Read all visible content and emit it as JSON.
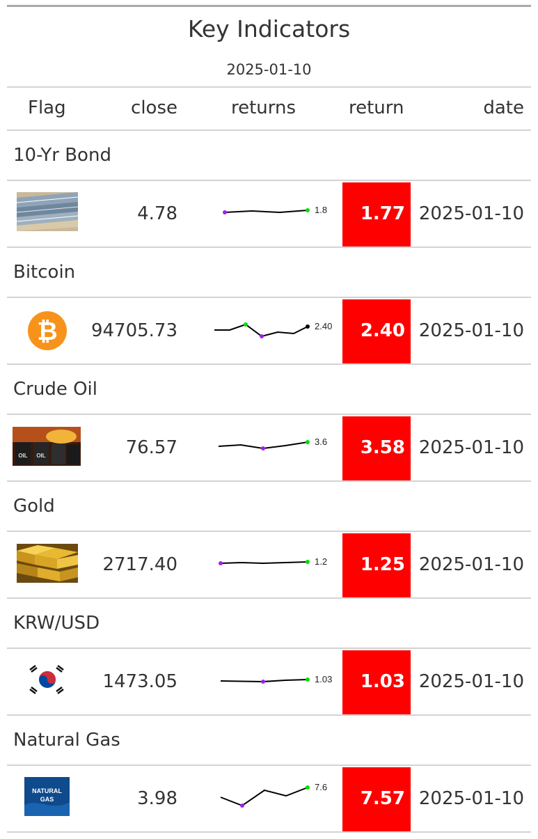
{
  "title": "Key Indicators",
  "subtitle": "2025-01-10",
  "columns": {
    "flag": "Flag",
    "close": "close",
    "returns": "returns",
    "return": "return",
    "date": "date"
  },
  "colors": {
    "return_bg": "#ff0000",
    "spark_line": "#000000",
    "spark_min": "#a020f0",
    "spark_max": "#00dd00"
  },
  "rows": [
    {
      "group": "10-Yr Bond",
      "flag_icon": "bond-certificates-icon",
      "close": "4.78",
      "spark_label": "1.8",
      "return": "1.77",
      "date": "2025-01-10"
    },
    {
      "group": "Bitcoin",
      "flag_icon": "bitcoin-icon",
      "close": "94705.73",
      "spark_label": "2.40",
      "return": "2.40",
      "date": "2025-01-10"
    },
    {
      "group": "Crude Oil",
      "flag_icon": "oil-barrels-icon",
      "close": "76.57",
      "spark_label": "3.6",
      "return": "3.58",
      "date": "2025-01-10"
    },
    {
      "group": "Gold",
      "flag_icon": "gold-bars-icon",
      "close": "2717.40",
      "spark_label": "1.2",
      "return": "1.25",
      "date": "2025-01-10"
    },
    {
      "group": "KRW/USD",
      "flag_icon": "south-korea-flag-icon",
      "close": "1473.05",
      "spark_label": "1.03",
      "return": "1.03",
      "date": "2025-01-10"
    },
    {
      "group": "Natural Gas",
      "flag_icon": "natural-gas-icon",
      "close": "3.98",
      "spark_label": "7.6",
      "return": "7.57",
      "date": "2025-01-10"
    }
  ],
  "flag_texts": {
    "gas_line1": "NATURAL",
    "gas_line2": "GAS",
    "oil_text": "OIL"
  }
}
